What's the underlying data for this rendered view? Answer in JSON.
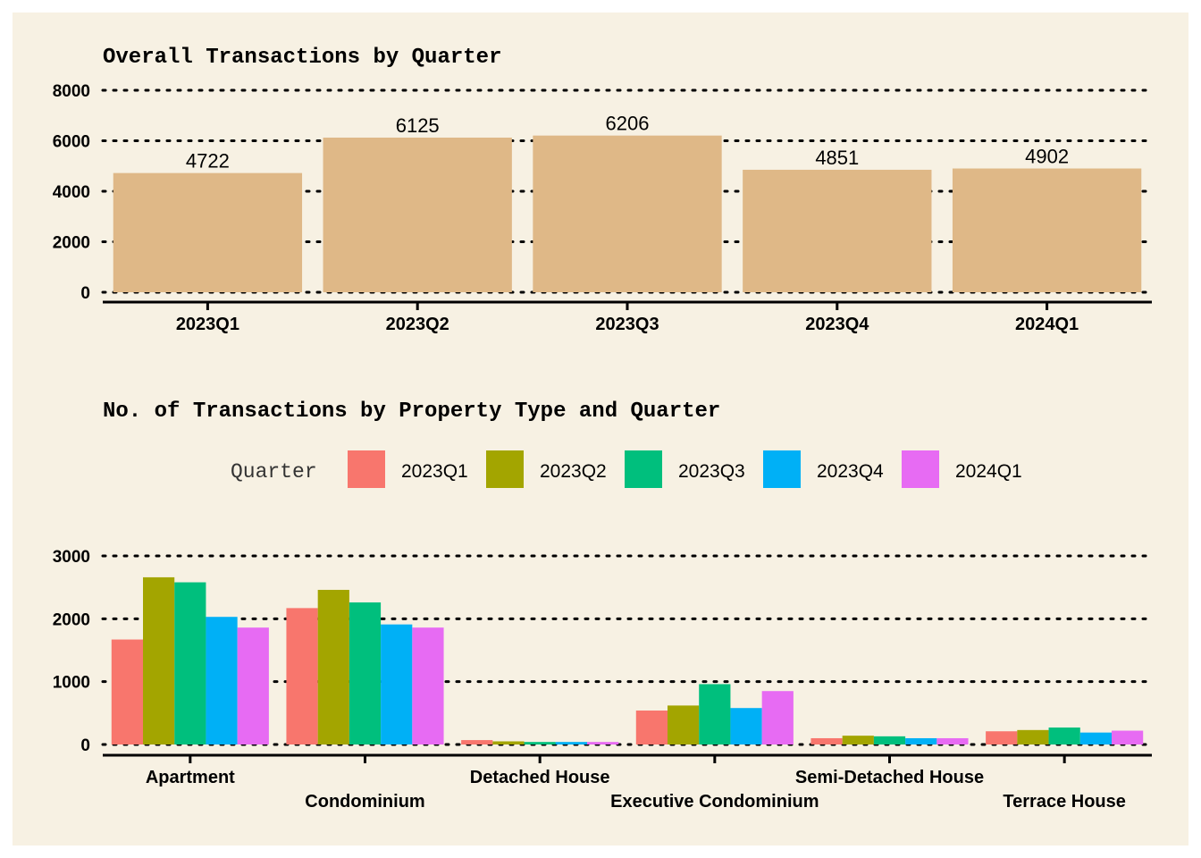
{
  "chart_data": [
    {
      "type": "bar",
      "title": "Overall Transactions by Quarter",
      "categories": [
        "2023Q1",
        "2023Q2",
        "2023Q3",
        "2023Q4",
        "2024Q1"
      ],
      "values": [
        4722,
        6125,
        6206,
        4851,
        4902
      ],
      "data_labels": [
        "4722",
        "6125",
        "6206",
        "4851",
        "4902"
      ],
      "yticks": [
        "0",
        "2000",
        "4000",
        "6000",
        "8000"
      ],
      "ylim": [
        0,
        8000
      ],
      "bar_color": "#dfb887",
      "grid": "horizontal dotted",
      "xlabel": "",
      "ylabel": ""
    },
    {
      "type": "bar",
      "title": "No. of Transactions by Property Type and Quarter",
      "legend_title": "Quarter",
      "legend_position": "top",
      "categories": [
        "Apartment",
        "Condominium",
        "Detached House",
        "Executive Condominium",
        "Semi-Detached House",
        "Terrace House"
      ],
      "series": [
        {
          "name": "2023Q1",
          "color": "#f8766d",
          "values": [
            1670,
            2170,
            70,
            540,
            100,
            210
          ]
        },
        {
          "name": "2023Q2",
          "color": "#a3a500",
          "values": [
            2660,
            2460,
            50,
            620,
            140,
            230
          ]
        },
        {
          "name": "2023Q3",
          "color": "#00bf7d",
          "values": [
            2580,
            2260,
            40,
            960,
            130,
            270
          ]
        },
        {
          "name": "2023Q4",
          "color": "#00b0f6",
          "values": [
            2030,
            1910,
            40,
            580,
            100,
            190
          ]
        },
        {
          "name": "2024Q1",
          "color": "#e76bf3",
          "values": [
            1860,
            1860,
            40,
            850,
            100,
            220
          ]
        }
      ],
      "yticks": [
        "0",
        "1000",
        "2000",
        "3000"
      ],
      "ylim": [
        0,
        3000
      ],
      "grid": "horizontal dotted",
      "xlabel": "",
      "ylabel": ""
    }
  ]
}
